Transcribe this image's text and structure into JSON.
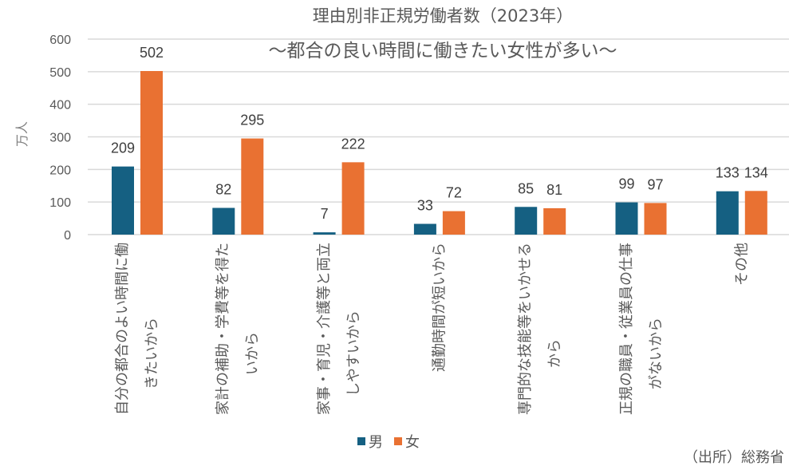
{
  "chart_data": {
    "type": "bar",
    "title": "理由別非正規労働者数（2023年）",
    "subtitle": "～都合の良い時間に働きたい女性が多い～",
    "xlabel": "",
    "ylabel": "万人",
    "ylim": [
      0,
      600
    ],
    "yticks": [
      "0",
      "100",
      "200",
      "300",
      "400",
      "500",
      "600"
    ],
    "grid": true,
    "legend_position": "bottom",
    "categories": [
      [
        "自分の都合のよい時間に働",
        "きたいから"
      ],
      [
        "家計の補助・学費等を得た",
        "いから"
      ],
      [
        "家事・育児・介護等と両立",
        "しやすいから"
      ],
      [
        "通勤時間が短いから"
      ],
      [
        "専門的な技能等をいかせる",
        "から"
      ],
      [
        "正規の職員・従業員の仕事",
        "がないから"
      ],
      [
        "その他"
      ]
    ],
    "series": [
      {
        "name": "男",
        "color": "#156082",
        "values": [
          209,
          82,
          7,
          33,
          85,
          99,
          133
        ]
      },
      {
        "name": "女",
        "color": "#E97132",
        "values": [
          502,
          295,
          222,
          72,
          81,
          97,
          134
        ]
      }
    ],
    "source": "（出所）総務省"
  }
}
